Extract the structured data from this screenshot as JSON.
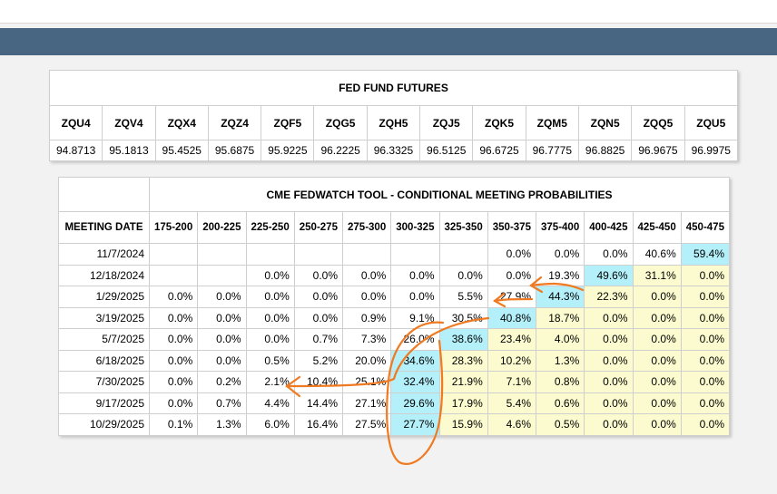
{
  "colors": {
    "nav": "#486582",
    "yellow": "#fbfbcf",
    "blue": "#b3f0fa",
    "annotation": "#f07a21"
  },
  "futures": {
    "title": "FED FUND FUTURES",
    "contracts": [
      "ZQU4",
      "ZQV4",
      "ZQX4",
      "ZQZ4",
      "ZQF5",
      "ZQG5",
      "ZQH5",
      "ZQJ5",
      "ZQK5",
      "ZQM5",
      "ZQN5",
      "ZQQ5",
      "ZQU5"
    ],
    "prices": [
      "94.8713",
      "95.1813",
      "95.4525",
      "95.6875",
      "95.9225",
      "96.2225",
      "96.3325",
      "96.5125",
      "96.6725",
      "96.7775",
      "96.8825",
      "96.9675",
      "96.9975"
    ]
  },
  "fedwatch": {
    "title": "CME FEDWATCH TOOL - CONDITIONAL MEETING PROBABILITIES",
    "date_header": "MEETING DATE",
    "ranges": [
      "175-200",
      "200-225",
      "225-250",
      "250-275",
      "275-300",
      "300-325",
      "325-350",
      "350-375",
      "375-400",
      "400-425",
      "425-450",
      "450-475"
    ],
    "rows": [
      {
        "date": "11/7/2024",
        "cells": [
          "",
          "",
          "",
          "",
          "",
          "",
          "",
          "0.0%",
          "0.0%",
          "0.0%",
          "40.6%",
          "59.4%"
        ]
      },
      {
        "date": "12/18/2024",
        "cells": [
          "",
          "",
          "0.0%",
          "0.0%",
          "0.0%",
          "0.0%",
          "0.0%",
          "0.0%",
          "19.3%",
          "49.6%",
          "31.1%",
          "0.0%"
        ]
      },
      {
        "date": "1/29/2025",
        "cells": [
          "0.0%",
          "0.0%",
          "0.0%",
          "0.0%",
          "0.0%",
          "0.0%",
          "5.5%",
          "27.9%",
          "44.3%",
          "22.3%",
          "0.0%",
          "0.0%"
        ]
      },
      {
        "date": "3/19/2025",
        "cells": [
          "0.0%",
          "0.0%",
          "0.0%",
          "0.0%",
          "0.9%",
          "9.1%",
          "30.5%",
          "40.8%",
          "18.7%",
          "0.0%",
          "0.0%",
          "0.0%"
        ]
      },
      {
        "date": "5/7/2025",
        "cells": [
          "0.0%",
          "0.0%",
          "0.0%",
          "0.7%",
          "7.3%",
          "26.0%",
          "38.6%",
          "23.4%",
          "4.0%",
          "0.0%",
          "0.0%",
          "0.0%"
        ]
      },
      {
        "date": "6/18/2025",
        "cells": [
          "0.0%",
          "0.0%",
          "0.5%",
          "5.2%",
          "20.0%",
          "34.6%",
          "28.3%",
          "10.2%",
          "1.3%",
          "0.0%",
          "0.0%",
          "0.0%"
        ]
      },
      {
        "date": "7/30/2025",
        "cells": [
          "0.0%",
          "0.2%",
          "2.1%",
          "10.4%",
          "25.1%",
          "32.4%",
          "21.9%",
          "7.1%",
          "0.8%",
          "0.0%",
          "0.0%",
          "0.0%"
        ]
      },
      {
        "date": "9/17/2025",
        "cells": [
          "0.0%",
          "0.7%",
          "4.4%",
          "14.4%",
          "27.1%",
          "29.6%",
          "17.9%",
          "5.4%",
          "0.6%",
          "0.0%",
          "0.0%",
          "0.0%"
        ]
      },
      {
        "date": "10/29/2025",
        "cells": [
          "0.1%",
          "1.3%",
          "6.0%",
          "16.4%",
          "27.5%",
          "27.7%",
          "15.9%",
          "4.6%",
          "0.5%",
          "0.0%",
          "0.0%",
          "0.0%"
        ]
      }
    ],
    "highlight": [
      [
        "",
        "",
        "",
        "",
        "",
        "",
        "",
        "",
        "",
        "",
        "",
        "blue"
      ],
      [
        "",
        "",
        "",
        "",
        "",
        "",
        "",
        "",
        "",
        "blue",
        "yellow",
        "yellow"
      ],
      [
        "",
        "",
        "",
        "",
        "",
        "",
        "",
        "",
        "blue",
        "yellow",
        "yellow",
        "yellow"
      ],
      [
        "",
        "",
        "",
        "",
        "",
        "",
        "",
        "blue",
        "yellow",
        "yellow",
        "yellow",
        "yellow"
      ],
      [
        "",
        "",
        "",
        "",
        "",
        "",
        "blue",
        "yellow",
        "yellow",
        "yellow",
        "yellow",
        "yellow"
      ],
      [
        "",
        "",
        "",
        "",
        "",
        "blue",
        "yellow",
        "yellow",
        "yellow",
        "yellow",
        "yellow",
        "yellow"
      ],
      [
        "",
        "",
        "",
        "",
        "",
        "blue",
        "yellow",
        "yellow",
        "yellow",
        "yellow",
        "yellow",
        "yellow"
      ],
      [
        "",
        "",
        "",
        "",
        "",
        "blue",
        "yellow",
        "yellow",
        "yellow",
        "yellow",
        "yellow",
        "yellow"
      ],
      [
        "",
        "",
        "",
        "",
        "",
        "blue",
        "yellow",
        "yellow",
        "yellow",
        "yellow",
        "yellow",
        "yellow"
      ]
    ]
  }
}
